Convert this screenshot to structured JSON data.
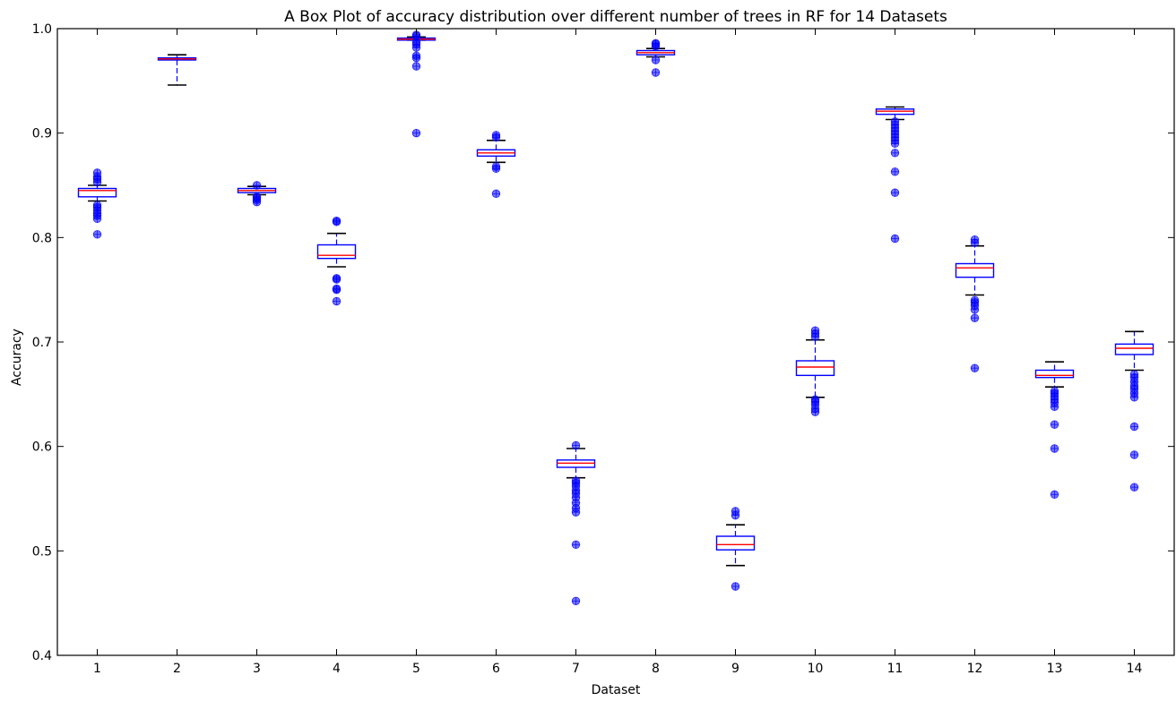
{
  "chart_data": {
    "type": "box",
    "title": "A Box Plot of accuracy distribution over different number of trees in RF for 14 Datasets",
    "xlabel": "Dataset",
    "ylabel": "Accuracy",
    "ylim": [
      0.4,
      1.0
    ],
    "yticks": [
      "0.4",
      "0.5",
      "0.6",
      "0.7",
      "0.8",
      "0.9",
      "1.0"
    ],
    "categories": [
      "1",
      "2",
      "3",
      "4",
      "5",
      "6",
      "7",
      "8",
      "9",
      "10",
      "11",
      "12",
      "13",
      "14"
    ],
    "grid": false,
    "colors": {
      "box": "#0000ff",
      "median": "#ff0000",
      "whisker_cap": "#000000",
      "outlier": "#0000ff"
    },
    "boxes": [
      {
        "category": "1",
        "whislo": 0.835,
        "q1": 0.839,
        "med": 0.845,
        "q3": 0.847,
        "whishi": 0.85,
        "fliers": [
          0.803,
          0.818,
          0.821,
          0.823,
          0.826,
          0.829,
          0.831,
          0.853,
          0.856,
          0.858,
          0.862
        ]
      },
      {
        "category": "2",
        "whislo": 0.946,
        "q1": 0.97,
        "med": 0.971,
        "q3": 0.972,
        "whishi": 0.975,
        "fliers": []
      },
      {
        "category": "3",
        "whislo": 0.841,
        "q1": 0.843,
        "med": 0.845,
        "q3": 0.847,
        "whishi": 0.849,
        "fliers": [
          0.834,
          0.836,
          0.838,
          0.839,
          0.85
        ]
      },
      {
        "category": "4",
        "whislo": 0.772,
        "q1": 0.78,
        "med": 0.783,
        "q3": 0.793,
        "whishi": 0.804,
        "fliers": [
          0.739,
          0.75,
          0.751,
          0.76,
          0.761,
          0.815,
          0.816
        ]
      },
      {
        "category": "5",
        "whislo": 0.989,
        "q1": 0.989,
        "med": 0.99,
        "q3": 0.991,
        "whishi": 0.992,
        "fliers": [
          0.9,
          0.964,
          0.972,
          0.974,
          0.982,
          0.985,
          0.987,
          0.993,
          0.994
        ]
      },
      {
        "category": "6",
        "whislo": 0.872,
        "q1": 0.878,
        "med": 0.881,
        "q3": 0.884,
        "whishi": 0.893,
        "fliers": [
          0.842,
          0.866,
          0.868,
          0.896,
          0.898
        ]
      },
      {
        "category": "7",
        "whislo": 0.57,
        "q1": 0.58,
        "med": 0.584,
        "q3": 0.587,
        "whishi": 0.598,
        "fliers": [
          0.452,
          0.506,
          0.537,
          0.541,
          0.546,
          0.551,
          0.555,
          0.558,
          0.562,
          0.565,
          0.567,
          0.601
        ]
      },
      {
        "category": "8",
        "whislo": 0.973,
        "q1": 0.975,
        "med": 0.977,
        "q3": 0.979,
        "whishi": 0.981,
        "fliers": [
          0.958,
          0.97,
          0.983,
          0.985,
          0.986
        ]
      },
      {
        "category": "9",
        "whislo": 0.486,
        "q1": 0.501,
        "med": 0.506,
        "q3": 0.514,
        "whishi": 0.525,
        "fliers": [
          0.466,
          0.534,
          0.538
        ]
      },
      {
        "category": "10",
        "whislo": 0.647,
        "q1": 0.668,
        "med": 0.676,
        "q3": 0.682,
        "whishi": 0.702,
        "fliers": [
          0.633,
          0.636,
          0.64,
          0.643,
          0.645,
          0.705,
          0.708,
          0.711
        ]
      },
      {
        "category": "11",
        "whislo": 0.913,
        "q1": 0.918,
        "med": 0.921,
        "q3": 0.923,
        "whishi": 0.925,
        "fliers": [
          0.799,
          0.843,
          0.863,
          0.881,
          0.89,
          0.893,
          0.896,
          0.899,
          0.902,
          0.905,
          0.908,
          0.911
        ]
      },
      {
        "category": "12",
        "whislo": 0.745,
        "q1": 0.762,
        "med": 0.771,
        "q3": 0.775,
        "whishi": 0.792,
        "fliers": [
          0.675,
          0.723,
          0.731,
          0.735,
          0.738,
          0.74,
          0.795,
          0.798
        ]
      },
      {
        "category": "13",
        "whislo": 0.657,
        "q1": 0.666,
        "med": 0.668,
        "q3": 0.673,
        "whishi": 0.681,
        "fliers": [
          0.554,
          0.598,
          0.621,
          0.638,
          0.642,
          0.645,
          0.648,
          0.651,
          0.653
        ]
      },
      {
        "category": "14",
        "whislo": 0.673,
        "q1": 0.688,
        "med": 0.694,
        "q3": 0.698,
        "whishi": 0.71,
        "fliers": [
          0.561,
          0.592,
          0.619,
          0.647,
          0.651,
          0.655,
          0.658,
          0.662,
          0.666,
          0.669
        ]
      }
    ]
  }
}
